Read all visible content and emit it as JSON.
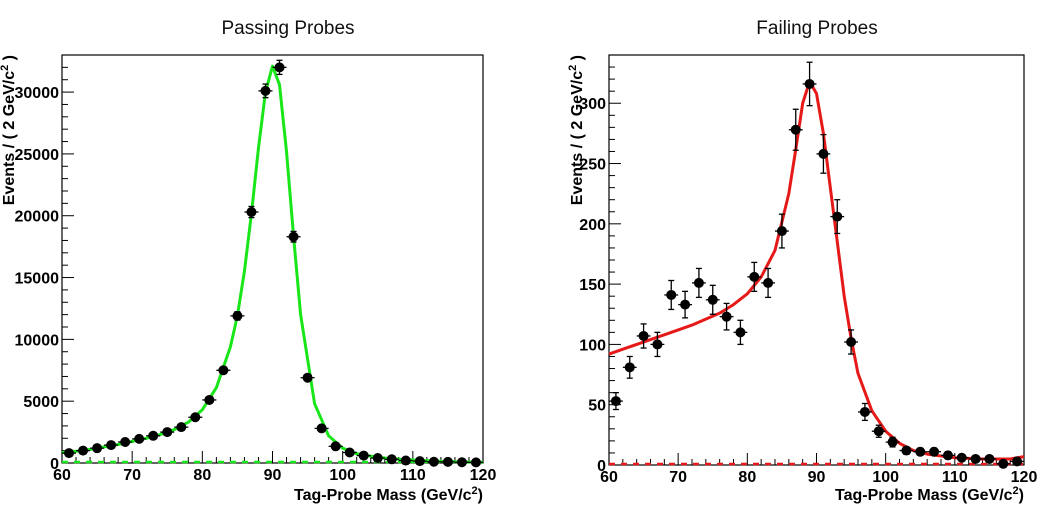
{
  "chart_data": [
    {
      "type": "scatter",
      "title": "Passing Probes",
      "xlabel": "Tag-Probe Mass (GeV/c",
      "xlabel_sup": "2",
      "xlabel_end": ")",
      "ylabel": "Events / ( 2 GeV/c",
      "ylabel_sup": "2",
      "ylabel_end": " )",
      "xlim": [
        60,
        120
      ],
      "ylim": [
        0,
        33000
      ],
      "xticks": [
        60,
        70,
        80,
        90,
        100,
        110,
        120
      ],
      "yticks": [
        0,
        5000,
        10000,
        15000,
        20000,
        25000,
        30000
      ],
      "xtick_labels": [
        "60",
        "70",
        "80",
        "90",
        "100",
        "110",
        "120"
      ],
      "ytick_labels": [
        "0",
        "5000",
        "10000",
        "15000",
        "20000",
        "25000",
        "30000"
      ],
      "fit_color": "#19e619",
      "background_color": "#19e619",
      "series": [
        {
          "kind": "points",
          "x": [
            61,
            63,
            65,
            67,
            69,
            71,
            73,
            75,
            77,
            79,
            81,
            83,
            85,
            87,
            89,
            91,
            93,
            95,
            97,
            99,
            101,
            103,
            105,
            107,
            109,
            111,
            113,
            115,
            117,
            119
          ],
          "y": [
            800,
            1000,
            1200,
            1450,
            1700,
            1950,
            2200,
            2500,
            2900,
            3700,
            5100,
            7500,
            11900,
            20300,
            30100,
            32000,
            18300,
            6900,
            2800,
            1350,
            850,
            600,
            400,
            300,
            200,
            150,
            100,
            90,
            60,
            50
          ],
          "yerr": [
            90,
            100,
            110,
            120,
            130,
            140,
            150,
            160,
            170,
            190,
            220,
            270,
            340,
            450,
            550,
            570,
            430,
            260,
            170,
            120,
            90,
            80,
            65,
            55,
            45,
            40,
            35,
            30,
            25,
            22
          ]
        },
        {
          "kind": "fit",
          "x": [
            60,
            62,
            64,
            66,
            68,
            70,
            72,
            74,
            76,
            78,
            80,
            82,
            84,
            85,
            86,
            87,
            88,
            89,
            90,
            91,
            92,
            93,
            94,
            96,
            98,
            100,
            102,
            105,
            108,
            112,
            116,
            120
          ],
          "y": [
            850,
            950,
            1100,
            1300,
            1500,
            1750,
            2000,
            2300,
            2700,
            3300,
            4300,
            6100,
            9400,
            11900,
            15500,
            20200,
            25500,
            30000,
            32100,
            30600,
            25200,
            18300,
            12000,
            4800,
            2200,
            1200,
            750,
            450,
            300,
            180,
            100,
            60
          ]
        },
        {
          "kind": "background",
          "x": [
            60,
            120
          ],
          "y": [
            0,
            0
          ]
        }
      ]
    },
    {
      "type": "scatter",
      "title": "Failing Probes",
      "xlabel": "Tag-Probe Mass (GeV/c",
      "xlabel_sup": "2",
      "xlabel_end": ")",
      "ylabel": "Events / ( 2 GeV/c",
      "ylabel_sup": "2",
      "ylabel_end": " )",
      "xlim": [
        60,
        120
      ],
      "ylim": [
        0,
        340
      ],
      "xticks": [
        60,
        70,
        80,
        90,
        100,
        110,
        120
      ],
      "yticks": [
        0,
        50,
        100,
        150,
        200,
        250,
        300
      ],
      "xtick_labels": [
        "60",
        "70",
        "80",
        "90",
        "100",
        "110",
        "120"
      ],
      "ytick_labels": [
        "0",
        "50",
        "100",
        "150",
        "200",
        "250",
        "300"
      ],
      "fit_color": "#e61919",
      "background_color": "#e61919",
      "series": [
        {
          "kind": "points",
          "x": [
            61,
            63,
            65,
            67,
            69,
            71,
            73,
            75,
            77,
            79,
            81,
            83,
            85,
            87,
            89,
            91,
            93,
            95,
            97,
            99,
            101,
            103,
            105,
            107,
            109,
            111,
            113,
            115,
            117,
            119
          ],
          "y": [
            53,
            81,
            107,
            100,
            141,
            133,
            151,
            137,
            123,
            110,
            156,
            151,
            194,
            278,
            316,
            258,
            206,
            102,
            44,
            28,
            19,
            12,
            11,
            11,
            8,
            6,
            5,
            5,
            1,
            3
          ],
          "yerr": [
            7,
            9,
            10,
            10,
            12,
            11,
            12,
            12,
            11,
            10,
            12,
            12,
            14,
            17,
            18,
            16,
            14,
            10,
            7,
            5,
            4,
            3,
            3,
            3,
            3,
            2,
            2,
            2,
            1,
            2
          ]
        },
        {
          "kind": "fit",
          "x": [
            60,
            62,
            64,
            66,
            68,
            70,
            72,
            74,
            76,
            78,
            80,
            82,
            84,
            86,
            87,
            88,
            89,
            90,
            91,
            92,
            93,
            94,
            95,
            96,
            98,
            100,
            102,
            104,
            106,
            110,
            114,
            118,
            120
          ],
          "y": [
            92,
            96,
            100,
            104,
            108,
            112,
            116,
            121,
            126,
            133,
            142,
            156,
            178,
            225,
            262,
            300,
            318,
            308,
            275,
            230,
            185,
            140,
            105,
            76,
            45,
            28,
            18,
            12,
            9,
            6,
            5,
            5,
            7
          ]
        },
        {
          "kind": "background",
          "x": [
            60,
            120
          ],
          "y": [
            0,
            0
          ]
        }
      ]
    }
  ]
}
